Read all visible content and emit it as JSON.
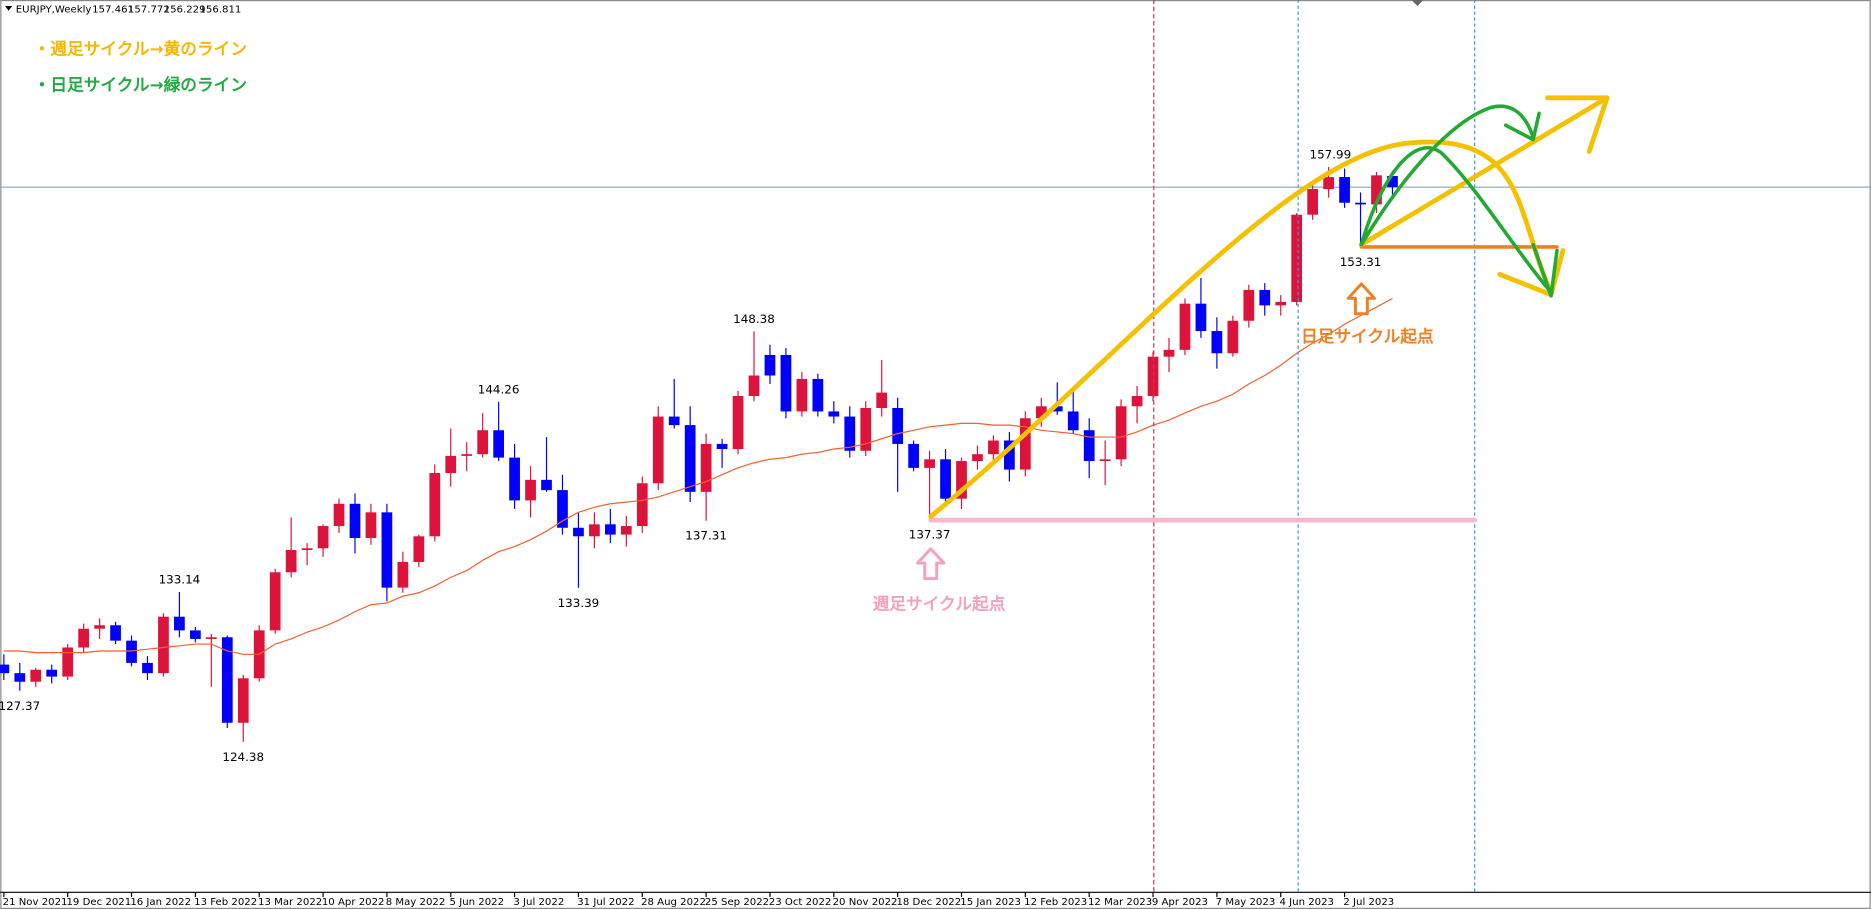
{
  "chart_data": {
    "type": "candlestick",
    "symbol": "EURJPY,Weekly",
    "categories": [
      "21 Nov 2021",
      null,
      null,
      null,
      "19 Dec 2021",
      null,
      null,
      null,
      "16 Jan 2022",
      null,
      null,
      null,
      "13 Feb 2022",
      null,
      null,
      null,
      "13 Mar 2022",
      null,
      null,
      null,
      "10 Apr 2022",
      null,
      null,
      null,
      "8 May 2022",
      null,
      null,
      null,
      "5 Jun 2022",
      null,
      null,
      null,
      "3 Jul 2022",
      null,
      null,
      null,
      "31 Jul 2022",
      null,
      null,
      null,
      "28 Aug 2022",
      null,
      null,
      null,
      "25 Sep 2022",
      null,
      null,
      null,
      "23 Oct 2022",
      null,
      null,
      null,
      "20 Nov 2022",
      null,
      null,
      null,
      "18 Dec 2022",
      null,
      null,
      null,
      "15 Jan 2023",
      null,
      null,
      null,
      "12 Feb 2023",
      null,
      null,
      null,
      "12 Mar 2023",
      null,
      null,
      null,
      "9 Apr 2023",
      null,
      null,
      null,
      "7 May 2023",
      null,
      null,
      null,
      "4 Jun 2023",
      null,
      null,
      null,
      "2 Jul 2023",
      null,
      null,
      null
    ],
    "open": [
      128.9,
      128.4,
      127.9,
      128.6,
      128.2,
      129.9,
      131.0,
      131.2,
      130.3,
      129.0,
      128.4,
      131.7,
      130.9,
      130.4,
      130.5,
      125.5,
      128.1,
      130.9,
      134.3,
      135.6,
      135.7,
      137.0,
      138.3,
      136.3,
      137.8,
      133.4,
      134.9,
      136.4,
      140.1,
      141.1,
      141.2,
      142.6,
      141.0,
      138.5,
      139.7,
      139.1,
      136.9,
      136.4,
      137.1,
      136.5,
      137.0,
      139.5,
      143.4,
      142.9,
      139.0,
      141.8,
      141.5,
      144.6,
      147.0,
      147.0,
      143.7,
      145.6,
      143.7,
      143.4,
      141.4,
      143.9,
      143.9,
      141.8,
      140.4,
      140.9,
      138.6,
      140.8,
      141.2,
      142.0,
      140.3,
      143.3,
      144.0,
      143.7,
      142.6,
      140.8,
      140.9,
      144.0,
      144.6,
      146.9,
      147.3,
      150.0,
      148.4,
      147.1,
      149.0,
      150.8,
      149.9,
      150.1,
      155.2,
      156.7,
      157.4,
      155.9,
      155.8,
      157.461
    ],
    "high": [
      129.5,
      129.0,
      128.7,
      128.9,
      130.1,
      131.3,
      131.6,
      131.4,
      130.6,
      129.4,
      131.9,
      133.14,
      131.1,
      130.7,
      130.6,
      128.3,
      131.2,
      134.5,
      137.5,
      136.0,
      137.1,
      138.6,
      138.9,
      138.3,
      138.3,
      135.5,
      136.5,
      140.6,
      142.7,
      141.9,
      143.6,
      144.26,
      141.8,
      140.5,
      142.2,
      140.0,
      137.8,
      137.8,
      138.0,
      137.6,
      139.9,
      144.0,
      145.6,
      144.0,
      142.4,
      142.1,
      144.9,
      148.38,
      147.6,
      147.4,
      146.0,
      145.9,
      144.3,
      144.0,
      144.3,
      146.7,
      144.5,
      142.0,
      141.4,
      141.5,
      141.0,
      141.7,
      142.3,
      142.5,
      143.7,
      144.5,
      145.4,
      145.0,
      143.3,
      142.0,
      144.4,
      145.2,
      147.2,
      148.0,
      150.3,
      151.5,
      149.2,
      149.3,
      151.1,
      151.2,
      150.5,
      155.3,
      157.0,
      157.99,
      157.9,
      156.5,
      157.7,
      157.772
    ],
    "low": [
      128.0,
      127.37,
      127.6,
      127.8,
      128.0,
      129.6,
      130.4,
      130.1,
      128.8,
      128.0,
      128.2,
      130.5,
      130.2,
      127.6,
      125.2,
      124.38,
      127.9,
      130.7,
      134.0,
      134.7,
      135.2,
      136.6,
      135.4,
      135.9,
      132.6,
      133.1,
      134.6,
      136.1,
      139.3,
      140.2,
      141.0,
      140.8,
      138.0,
      137.5,
      139.0,
      136.5,
      133.39,
      135.7,
      136.0,
      135.8,
      136.6,
      139.1,
      142.7,
      138.4,
      137.31,
      140.4,
      141.2,
      144.3,
      145.3,
      143.3,
      143.4,
      143.4,
      143.0,
      141.0,
      141.1,
      143.4,
      139.0,
      140.2,
      137.37,
      138.3,
      138.0,
      140.3,
      140.6,
      139.6,
      139.9,
      142.8,
      143.5,
      142.4,
      139.8,
      139.4,
      140.5,
      143.0,
      144.3,
      146.0,
      147.0,
      148.0,
      146.2,
      146.9,
      148.6,
      149.3,
      149.3,
      149.9,
      154.9,
      156.2,
      155.6,
      153.31,
      155.3,
      156.229
    ],
    "close": [
      128.4,
      127.9,
      128.6,
      128.2,
      129.9,
      131.0,
      131.2,
      130.3,
      129.0,
      128.4,
      131.7,
      130.9,
      130.4,
      130.5,
      125.5,
      128.1,
      130.9,
      134.3,
      135.6,
      135.7,
      137.0,
      138.3,
      136.3,
      137.8,
      133.4,
      134.9,
      136.4,
      140.1,
      141.1,
      141.2,
      142.6,
      141.0,
      138.5,
      139.7,
      139.1,
      136.9,
      136.4,
      137.1,
      136.5,
      137.0,
      139.5,
      143.4,
      142.9,
      139.0,
      141.8,
      141.5,
      144.6,
      145.8,
      145.8,
      143.7,
      145.6,
      143.7,
      143.4,
      141.4,
      143.9,
      144.8,
      141.8,
      140.4,
      140.9,
      138.6,
      140.8,
      141.2,
      142.0,
      140.3,
      143.3,
      144.0,
      143.7,
      142.6,
      140.8,
      140.9,
      144.0,
      144.6,
      146.9,
      147.3,
      150.0,
      148.4,
      147.1,
      149.0,
      150.8,
      149.9,
      150.1,
      155.2,
      156.7,
      157.4,
      155.9,
      155.8,
      157.5,
      156.811
    ],
    "up_color": "#dc143c",
    "down_color": "#0000ff",
    "ma": {
      "color": "#f06030",
      "values": [
        129.7,
        129.7,
        129.6,
        129.6,
        129.6,
        129.6,
        129.7,
        129.7,
        129.7,
        129.8,
        129.9,
        130.0,
        130.1,
        130.1,
        129.7,
        129.5,
        129.5,
        130.1,
        130.4,
        130.8,
        131.1,
        131.5,
        132.0,
        132.4,
        132.5,
        132.9,
        133.1,
        133.5,
        134.0,
        134.4,
        135.0,
        135.5,
        135.8,
        136.2,
        136.7,
        137.3,
        137.8,
        138.1,
        138.3,
        138.4,
        138.5,
        138.7,
        139.0,
        139.3,
        139.6,
        140.0,
        140.4,
        140.7,
        140.9,
        141.0,
        141.2,
        141.3,
        141.5,
        141.6,
        141.8,
        142.1,
        142.4,
        142.6,
        142.8,
        142.9,
        143.0,
        143.0,
        142.9,
        142.9,
        142.8,
        142.6,
        142.5,
        142.4,
        142.2,
        142.2,
        142.2,
        142.5,
        142.9,
        143.2,
        143.6,
        144.0,
        144.3,
        144.7,
        145.3,
        145.8,
        146.4,
        147.1,
        147.7,
        148.2,
        148.8,
        149.3,
        149.8,
        150.3
      ]
    },
    "ylim": [
      115.59,
      167.75
    ],
    "notes": [
      {
        "text": "・週足サイクル→黄のライン",
        "color": "#f5b800"
      },
      {
        "text": "・日足サイクル→緑のライン",
        "color": "#22aa44"
      }
    ],
    "annotations": [
      {
        "text": "週足サイクル起点",
        "color": "#f4a0c0"
      },
      {
        "text": "日足サイクル起点",
        "color": "#f08020"
      }
    ]
  }
}
